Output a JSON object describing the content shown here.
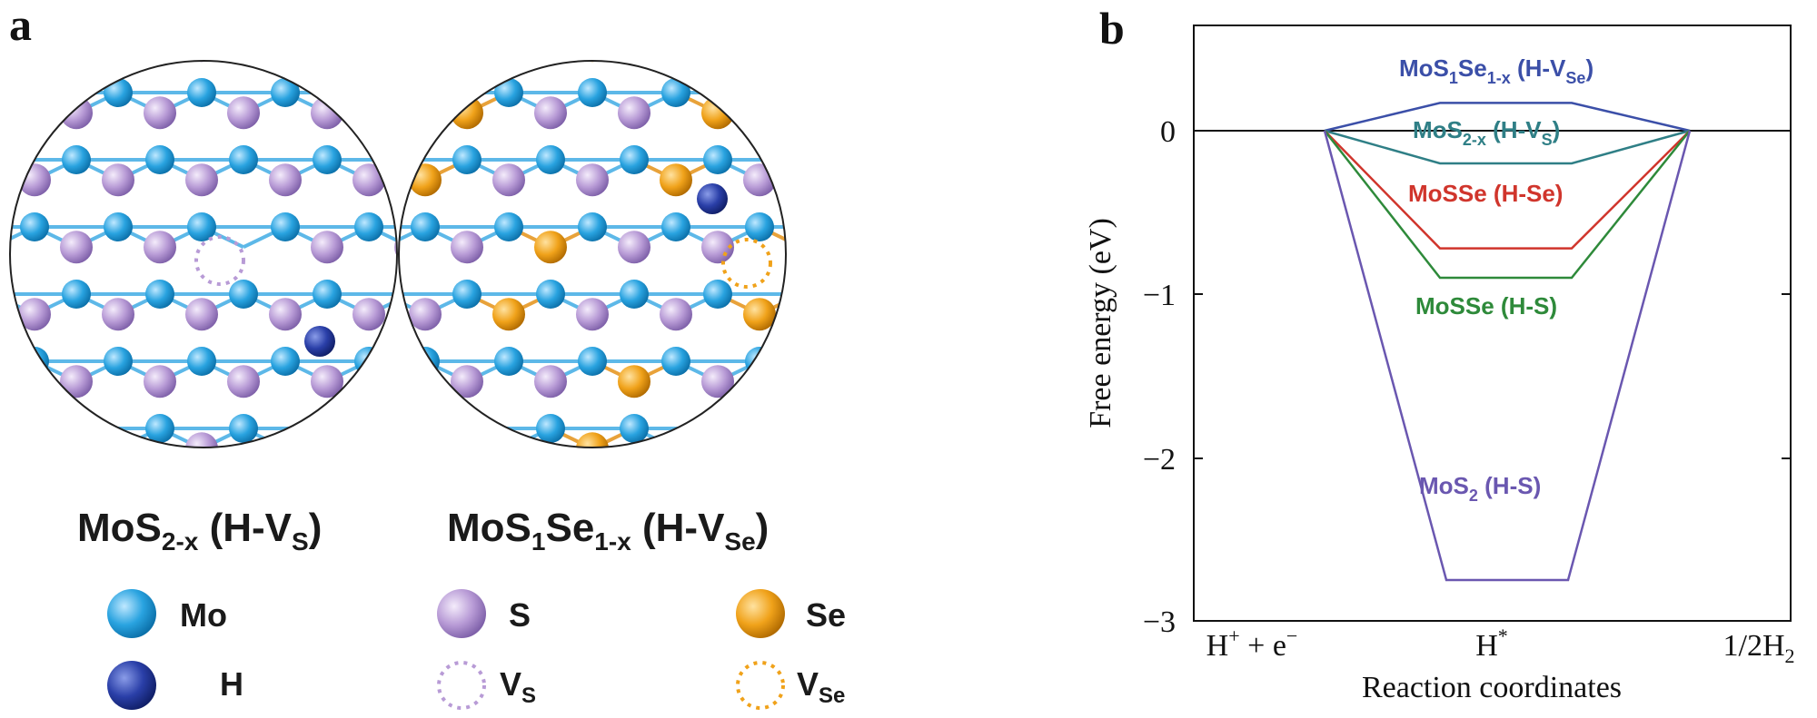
{
  "panel_a": {
    "letter": "a",
    "structures": [
      {
        "label_main": "MoS",
        "label_sub1": "2-x",
        "label_mid": " (H-V",
        "label_sub2": "S",
        "label_end": ")",
        "vacancy_type": "S"
      },
      {
        "label_main": "MoS",
        "label_sub1": "1",
        "label_mid": "Se",
        "label_sub1b": "1-x",
        "label_mid2": " (H-V",
        "label_sub2": "Se",
        "label_end": ")",
        "vacancy_type": "Se"
      }
    ],
    "legend": [
      {
        "label": "Mo",
        "color": "#29a3e0",
        "kind": "atom"
      },
      {
        "label": "S",
        "color": "#b89bd6",
        "kind": "atom"
      },
      {
        "label": "Se",
        "color": "#f0a21a",
        "kind": "atom"
      },
      {
        "label": "H",
        "color": "#2a3fa8",
        "kind": "atom"
      },
      {
        "label": "V",
        "label_sub": "S",
        "color": "#b89bd6",
        "kind": "vacancy"
      },
      {
        "label": "V",
        "label_sub": "Se",
        "color": "#f0a21a",
        "kind": "vacancy"
      }
    ],
    "colors": {
      "mo": "#29a3e0",
      "s": "#b89bd6",
      "se": "#f0a21a",
      "h": "#2a3fa8"
    }
  },
  "panel_b": {
    "letter": "b",
    "ylabel": "Free energy (eV)",
    "xlabel": "Reaction coordinates",
    "y_ticks": [
      "0",
      "−1",
      "−2",
      "−3"
    ],
    "x_ticks": [
      {
        "main": "H",
        "sup": "+",
        "rest": " + e",
        "sup2": "−"
      },
      {
        "main": "H",
        "sup": "*"
      },
      {
        "main": "1/2H",
        "sub": "2"
      }
    ]
  },
  "chart_data": {
    "type": "line",
    "title": "",
    "xlabel": "Reaction coordinates",
    "ylabel": "Free energy (eV)",
    "ylim": [
      -3,
      0.6
    ],
    "categories": [
      "H⁺ + e⁻",
      "H*",
      "1/2H₂"
    ],
    "series": [
      {
        "name": "MoS1Se1-x (H-VSe)",
        "label_html": {
          "a": "MoS",
          "b": "1",
          "c": "Se",
          "d": "1-x",
          "e": " (H-V",
          "f": "Se",
          "g": ")"
        },
        "color": "#3b4fa8",
        "values": [
          0,
          0.17,
          0
        ]
      },
      {
        "name": "MoS2-x (H-VS)",
        "label_html": {
          "a": "MoS",
          "b": "2-x",
          "e": " (H-V",
          "f": "S",
          "g": ")"
        },
        "color": "#2f7f86",
        "values": [
          0,
          -0.2,
          0
        ]
      },
      {
        "name": "MoSSe (H-Se)",
        "label_html": {
          "a": "MoSSe (H-Se)"
        },
        "color": "#d0352c",
        "values": [
          0,
          -0.72,
          0
        ]
      },
      {
        "name": "MoSSe (H-S)",
        "label_html": {
          "a": "MoSSe (H-S)"
        },
        "color": "#2e8a3a",
        "values": [
          0,
          -0.9,
          0
        ]
      },
      {
        "name": "MoS2 (H-S)",
        "label_html": {
          "a": "MoS",
          "b": "2",
          "e": " (H-S)"
        },
        "color": "#6a57b0",
        "values": [
          0,
          -2.75,
          0
        ]
      }
    ],
    "grid": false,
    "legend": "inline labels"
  }
}
